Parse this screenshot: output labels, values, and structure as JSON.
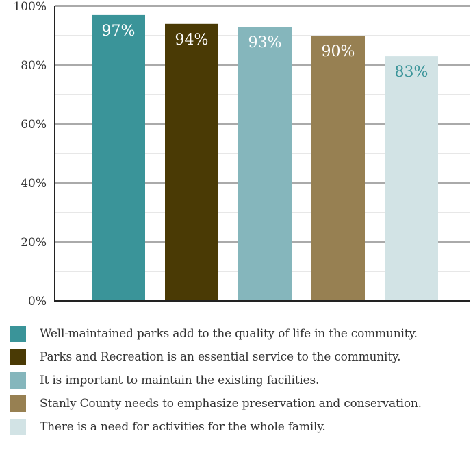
{
  "chart_data": {
    "type": "bar",
    "categories": [
      "Well-maintained parks add to the quality of life in the community.",
      "Parks and Recreation is an essential service to the community.",
      "It is important to maintain the existing facilities.",
      "Stanly County needs to emphasize preservation and conservation.",
      "There is a need for activities for the whole family."
    ],
    "values": [
      97,
      94,
      93,
      90,
      83
    ],
    "data_labels": [
      "97%",
      "94%",
      "93%",
      "90%",
      "83%"
    ],
    "colors": [
      "#3a9499",
      "#4a3a05",
      "#85b6bc",
      "#978052",
      "#d2e3e5"
    ],
    "label_colors": [
      "#ffffff",
      "#ffffff",
      "#ffffff",
      "#ffffff",
      "#3a9499"
    ],
    "ylim": [
      0,
      100
    ],
    "yticks": [
      0,
      20,
      40,
      60,
      80,
      100
    ],
    "ytick_labels": [
      "0%",
      "20%",
      "40%",
      "60%",
      "80%",
      "100%"
    ],
    "grid": true,
    "legend_position": "bottom",
    "title": "",
    "xlabel": "",
    "ylabel": ""
  }
}
